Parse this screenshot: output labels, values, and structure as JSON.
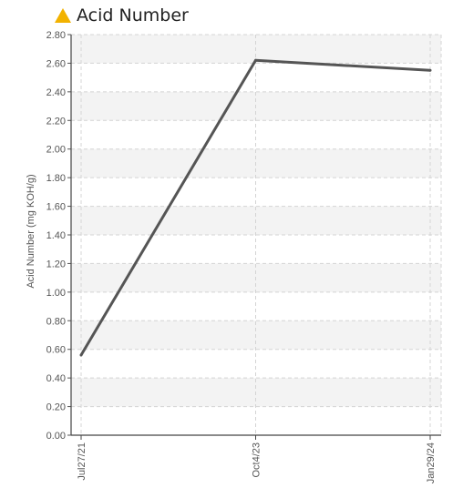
{
  "header": {
    "icon": "warning-triangle-icon",
    "icon_color": "#f2b200"
  },
  "chart_data": {
    "type": "line",
    "title": "Acid Number",
    "xlabel": "",
    "ylabel": "Acid Number (mg KOH/g)",
    "categories": [
      "Jul27/21",
      "Oct4/23",
      "Jan29/24"
    ],
    "series": [
      {
        "values": [
          0.56,
          2.62,
          2.55
        ],
        "color": "#555555"
      }
    ],
    "ylim": [
      0,
      2.8
    ],
    "ytick_step": 0.2,
    "grid": true
  }
}
